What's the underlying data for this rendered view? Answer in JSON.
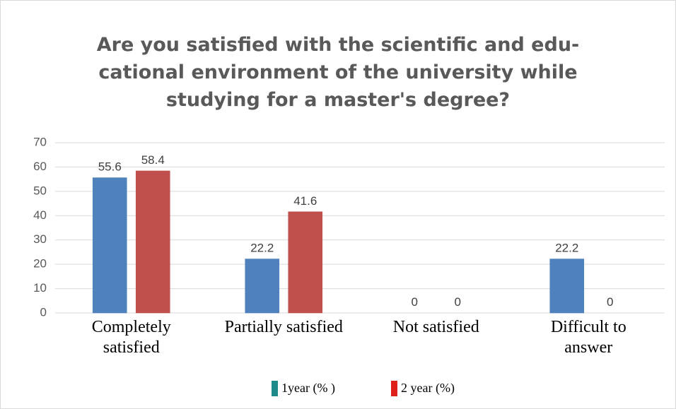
{
  "chart_data": {
    "type": "bar",
    "title": [
      "Are you satisfied with the scientific and edu-",
      "cational environment of the university while",
      "studying for a master's degree?"
    ],
    "categories": [
      "Completely satisfied",
      "Partially satisfied",
      "Not satisfied",
      "Difficult to answer"
    ],
    "series": [
      {
        "name": "1year (% )",
        "color": "#4f81bd",
        "legend_color": "#1f8a8a",
        "values": [
          55.6,
          22.2,
          0,
          22.2
        ]
      },
      {
        "name": "2 year (%)",
        "color": "#c0504d",
        "legend_color": "#e0201b",
        "values": [
          58.4,
          41.6,
          0,
          0
        ]
      }
    ],
    "ylim": [
      0,
      70
    ],
    "yticks": [
      0,
      10,
      20,
      30,
      40,
      50,
      60,
      70
    ],
    "grid": true,
    "legend": "bottom"
  }
}
